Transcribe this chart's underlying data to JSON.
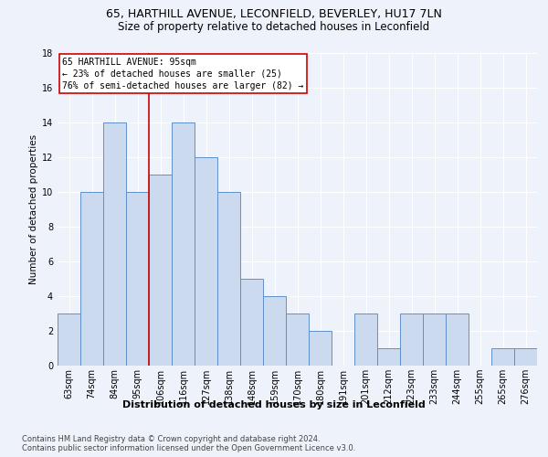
{
  "title_line1": "65, HARTHILL AVENUE, LECONFIELD, BEVERLEY, HU17 7LN",
  "title_line2": "Size of property relative to detached houses in Leconfield",
  "xlabel": "Distribution of detached houses by size in Leconfield",
  "ylabel": "Number of detached properties",
  "categories": [
    "63sqm",
    "74sqm",
    "84sqm",
    "95sqm",
    "106sqm",
    "116sqm",
    "127sqm",
    "138sqm",
    "148sqm",
    "159sqm",
    "170sqm",
    "180sqm",
    "191sqm",
    "201sqm",
    "212sqm",
    "223sqm",
    "233sqm",
    "244sqm",
    "255sqm",
    "265sqm",
    "276sqm"
  ],
  "values": [
    3,
    10,
    14,
    10,
    11,
    14,
    12,
    10,
    5,
    4,
    3,
    2,
    0,
    3,
    1,
    3,
    3,
    3,
    0,
    1,
    1
  ],
  "bar_color": "#ccdaf0",
  "bar_edge_color": "#6090cc",
  "vline_color": "#cc0000",
  "vline_index": 3,
  "annotation_text": "65 HARTHILL AVENUE: 95sqm\n← 23% of detached houses are smaller (25)\n76% of semi-detached houses are larger (82) →",
  "annotation_box_color": "#ffffff",
  "annotation_box_edge_color": "#cc0000",
  "ylim": [
    0,
    18
  ],
  "yticks": [
    0,
    2,
    4,
    6,
    8,
    10,
    12,
    14,
    16,
    18
  ],
  "footer_line1": "Contains HM Land Registry data © Crown copyright and database right 2024.",
  "footer_line2": "Contains public sector information licensed under the Open Government Licence v3.0.",
  "background_color": "#eef2fa",
  "grid_color": "#ffffff",
  "title1_fontsize": 9,
  "title2_fontsize": 8.5,
  "xlabel_fontsize": 8,
  "ylabel_fontsize": 7.5,
  "tick_fontsize": 7,
  "annotation_fontsize": 7,
  "footer_fontsize": 6
}
